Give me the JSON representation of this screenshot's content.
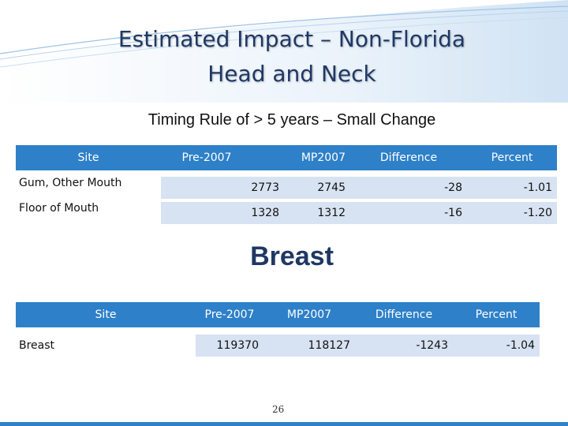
{
  "title": {
    "line1": "Estimated Impact – Non-Florida",
    "line2": "Head and Neck"
  },
  "subtitle": "Timing Rule of > 5 years – Small Change",
  "table1": {
    "headers": [
      "Site",
      "Pre-2007",
      "MP2007",
      "Difference",
      "Percent"
    ],
    "rows": [
      {
        "site": "Gum, Other Mouth",
        "pre": "2773",
        "mp": "2745",
        "diff": "-28",
        "pct": "-1.01"
      },
      {
        "site": "Floor of Mouth",
        "pre": "1328",
        "mp": "1312",
        "diff": "-16",
        "pct": "-1.20"
      }
    ]
  },
  "section2_title": "Breast",
  "table2": {
    "headers": [
      "Site",
      "Pre-2007",
      "MP2007",
      "Difference",
      "Percent"
    ],
    "rows": [
      {
        "site": "Breast",
        "pre": "119370",
        "mp": "118127",
        "diff": "-1243",
        "pct": "-1.04"
      }
    ]
  },
  "page_number": "26",
  "colors": {
    "header_blue": "#2e80c8",
    "cell_blue": "#d7e3f2",
    "title_navy": "#1f3864"
  }
}
